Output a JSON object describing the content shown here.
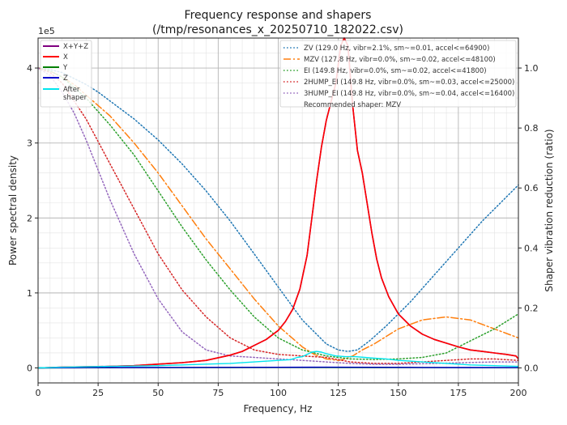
{
  "chart_data": {
    "type": "line",
    "title_line1": "Frequency response and shapers",
    "title_line2": "(/tmp/resonances_x_20250710_182022.csv)",
    "xlabel": "Frequency, Hz",
    "ylabel": "Power spectral density",
    "y2label": "Shaper vibration reduction (ratio)",
    "y_exponent": "1e5",
    "xlim": [
      0,
      200
    ],
    "ylim": [
      -0.2,
      4.4
    ],
    "y2lim": [
      -0.05,
      1.1
    ],
    "xticks": [
      "0",
      "25",
      "50",
      "75",
      "100",
      "125",
      "150",
      "175",
      "200"
    ],
    "yticks": [
      "0",
      "1",
      "2",
      "3",
      "4"
    ],
    "y2ticks": [
      "0.0",
      "0.2",
      "0.4",
      "0.6",
      "0.8",
      "1.0"
    ],
    "grid": true,
    "psd_legend": {
      "placement": "top-left",
      "entries": [
        {
          "label": "X+Y+Z",
          "color": "#800080"
        },
        {
          "label": "X",
          "color": "#ff0000"
        },
        {
          "label": "Y",
          "color": "#008000"
        },
        {
          "label": "Z",
          "color": "#0000cc"
        },
        {
          "label": "After\nshaper",
          "color": "#00e5ee"
        }
      ]
    },
    "shaper_legend": {
      "placement": "top-right",
      "entries": [
        {
          "label": "ZV (129.0 Hz, vibr=2.1%, sm~=0.01, accel<=64900)",
          "color": "#1f77b4",
          "style": "dotted"
        },
        {
          "label": "MZV (127.8 Hz, vibr=0.0%, sm~=0.02, accel<=48100)",
          "color": "#ff7f0e",
          "style": "dashdot"
        },
        {
          "label": "EI (149.8 Hz, vibr=0.0%, sm~=0.02, accel<=41800)",
          "color": "#2ca02c",
          "style": "dotted"
        },
        {
          "label": "2HUMP_EI (149.8 Hz, vibr=0.0%, sm~=0.03, accel<=25000)",
          "color": "#d62728",
          "style": "dotted"
        },
        {
          "label": "3HUMP_EI (149.8 Hz, vibr=0.0%, sm~=0.04, accel<=16400)",
          "color": "#9467bd",
          "style": "dotted"
        }
      ],
      "recommendation": "Recommended shaper: MZV"
    },
    "psd_series": [
      {
        "name": "X+Y+Z",
        "color": "#800080",
        "axis": "left",
        "x": [
          0,
          10,
          20,
          30,
          40,
          50,
          60,
          70,
          80,
          85,
          90,
          95,
          100,
          103,
          106,
          109,
          112,
          114,
          116,
          118,
          120,
          122,
          124,
          126,
          127.5,
          129,
          131,
          133,
          135,
          137,
          139,
          141,
          143,
          146,
          150,
          155,
          160,
          165,
          170,
          175,
          180,
          185,
          190,
          195,
          199,
          200
        ],
        "y": [
          0,
          0.01,
          0.015,
          0.02,
          0.03,
          0.05,
          0.07,
          0.1,
          0.17,
          0.22,
          0.3,
          0.38,
          0.5,
          0.62,
          0.78,
          1.05,
          1.5,
          2.0,
          2.5,
          2.95,
          3.3,
          3.55,
          3.8,
          4.3,
          4.4,
          4.3,
          3.5,
          2.9,
          2.6,
          2.2,
          1.8,
          1.45,
          1.2,
          0.95,
          0.72,
          0.56,
          0.45,
          0.38,
          0.33,
          0.28,
          0.24,
          0.22,
          0.2,
          0.18,
          0.16,
          0.12
        ]
      },
      {
        "name": "X",
        "color": "#ff0000",
        "axis": "left",
        "x": [
          0,
          10,
          20,
          30,
          40,
          50,
          60,
          70,
          80,
          85,
          90,
          95,
          100,
          103,
          106,
          109,
          112,
          114,
          116,
          118,
          120,
          122,
          124,
          126,
          127.5,
          129,
          131,
          133,
          135,
          137,
          139,
          141,
          143,
          146,
          150,
          155,
          160,
          165,
          170,
          175,
          180,
          185,
          190,
          195,
          199,
          200
        ],
        "y": [
          0,
          0.01,
          0.015,
          0.02,
          0.03,
          0.05,
          0.07,
          0.1,
          0.17,
          0.22,
          0.3,
          0.38,
          0.5,
          0.62,
          0.78,
          1.05,
          1.5,
          2.0,
          2.5,
          2.95,
          3.3,
          3.55,
          3.8,
          4.3,
          4.4,
          4.3,
          3.5,
          2.9,
          2.6,
          2.2,
          1.8,
          1.45,
          1.2,
          0.95,
          0.72,
          0.56,
          0.45,
          0.38,
          0.33,
          0.28,
          0.24,
          0.22,
          0.2,
          0.18,
          0.16,
          0.12
        ]
      },
      {
        "name": "Y",
        "color": "#008000",
        "axis": "left",
        "x": [
          0,
          20,
          40,
          60,
          80,
          100,
          120,
          140,
          160,
          180,
          200
        ],
        "y": [
          0,
          0.002,
          0.003,
          0.004,
          0.005,
          0.006,
          0.006,
          0.005,
          0.004,
          0.003,
          0.002
        ]
      },
      {
        "name": "Z",
        "color": "#0000cc",
        "axis": "left",
        "x": [
          0,
          20,
          40,
          60,
          80,
          100,
          120,
          140,
          160,
          180,
          200
        ],
        "y": [
          0,
          0.004,
          0.005,
          0.006,
          0.007,
          0.008,
          0.01,
          0.008,
          0.006,
          0.005,
          0.004
        ]
      },
      {
        "name": "After\nshaper",
        "color": "#00e5ee",
        "axis": "left",
        "x": [
          0,
          10,
          20,
          30,
          40,
          50,
          60,
          70,
          80,
          90,
          100,
          105,
          108,
          110,
          112,
          114,
          116,
          118,
          120,
          124,
          128,
          132,
          136,
          140,
          145,
          150,
          155,
          160,
          170,
          180,
          190,
          200
        ],
        "y": [
          0,
          0.01,
          0.015,
          0.02,
          0.025,
          0.03,
          0.04,
          0.05,
          0.06,
          0.08,
          0.1,
          0.11,
          0.14,
          0.15,
          0.18,
          0.21,
          0.22,
          0.21,
          0.19,
          0.16,
          0.15,
          0.15,
          0.14,
          0.13,
          0.12,
          0.1,
          0.09,
          0.08,
          0.06,
          0.04,
          0.03,
          0.02
        ]
      }
    ],
    "shaper_series": [
      {
        "name": "ZV",
        "color": "#1f77b4",
        "style": "dotted",
        "axis": "right",
        "x": [
          0,
          5,
          10,
          15,
          20,
          25,
          30,
          40,
          50,
          60,
          70,
          80,
          90,
          100,
          110,
          115,
          120,
          125,
          129,
          133,
          138,
          145,
          155,
          165,
          175,
          185,
          195,
          200
        ],
        "y": [
          1.0,
          0.995,
          0.985,
          0.965,
          0.945,
          0.92,
          0.89,
          0.83,
          0.76,
          0.68,
          0.59,
          0.49,
          0.38,
          0.27,
          0.16,
          0.12,
          0.08,
          0.06,
          0.055,
          0.06,
          0.09,
          0.14,
          0.22,
          0.31,
          0.4,
          0.49,
          0.57,
          0.61
        ]
      },
      {
        "name": "MZV",
        "color": "#ff7f0e",
        "style": "dashdot",
        "axis": "right",
        "x": [
          0,
          5,
          10,
          15,
          20,
          30,
          40,
          50,
          60,
          70,
          80,
          90,
          100,
          110,
          115,
          120,
          125,
          128,
          131,
          135,
          140,
          150,
          160,
          170,
          180,
          190,
          200
        ],
        "y": [
          1.0,
          0.99,
          0.97,
          0.945,
          0.91,
          0.84,
          0.75,
          0.65,
          0.54,
          0.43,
          0.33,
          0.23,
          0.14,
          0.07,
          0.045,
          0.03,
          0.025,
          0.03,
          0.04,
          0.06,
          0.08,
          0.13,
          0.16,
          0.17,
          0.16,
          0.13,
          0.1
        ]
      },
      {
        "name": "EI",
        "color": "#2ca02c",
        "style": "dotted",
        "axis": "right",
        "x": [
          0,
          5,
          10,
          20,
          30,
          40,
          50,
          60,
          70,
          80,
          90,
          100,
          110,
          120,
          130,
          140,
          150,
          160,
          170,
          180,
          190,
          200
        ],
        "y": [
          1.0,
          0.99,
          0.97,
          0.9,
          0.81,
          0.71,
          0.59,
          0.47,
          0.36,
          0.26,
          0.17,
          0.1,
          0.06,
          0.04,
          0.03,
          0.028,
          0.03,
          0.035,
          0.05,
          0.09,
          0.13,
          0.18
        ]
      },
      {
        "name": "2HUMP_EI",
        "color": "#d62728",
        "style": "dotted",
        "axis": "right",
        "x": [
          0,
          5,
          10,
          15,
          20,
          30,
          40,
          50,
          60,
          70,
          80,
          90,
          100,
          110,
          120,
          130,
          140,
          150,
          160,
          170,
          180,
          190,
          200
        ],
        "y": [
          1.0,
          0.985,
          0.95,
          0.89,
          0.83,
          0.68,
          0.53,
          0.38,
          0.26,
          0.17,
          0.1,
          0.06,
          0.045,
          0.04,
          0.035,
          0.02,
          0.015,
          0.015,
          0.02,
          0.025,
          0.03,
          0.03,
          0.025
        ]
      },
      {
        "name": "3HUMP_EI",
        "color": "#9467bd",
        "style": "dotted",
        "axis": "right",
        "x": [
          0,
          5,
          10,
          15,
          20,
          25,
          30,
          40,
          50,
          60,
          70,
          80,
          90,
          100,
          110,
          120,
          130,
          140,
          150,
          160,
          170,
          180,
          190,
          200
        ],
        "y": [
          1.0,
          0.975,
          0.92,
          0.85,
          0.76,
          0.66,
          0.56,
          0.38,
          0.23,
          0.12,
          0.06,
          0.04,
          0.035,
          0.03,
          0.025,
          0.02,
          0.015,
          0.012,
          0.012,
          0.014,
          0.016,
          0.018,
          0.02,
          0.02
        ]
      }
    ]
  }
}
